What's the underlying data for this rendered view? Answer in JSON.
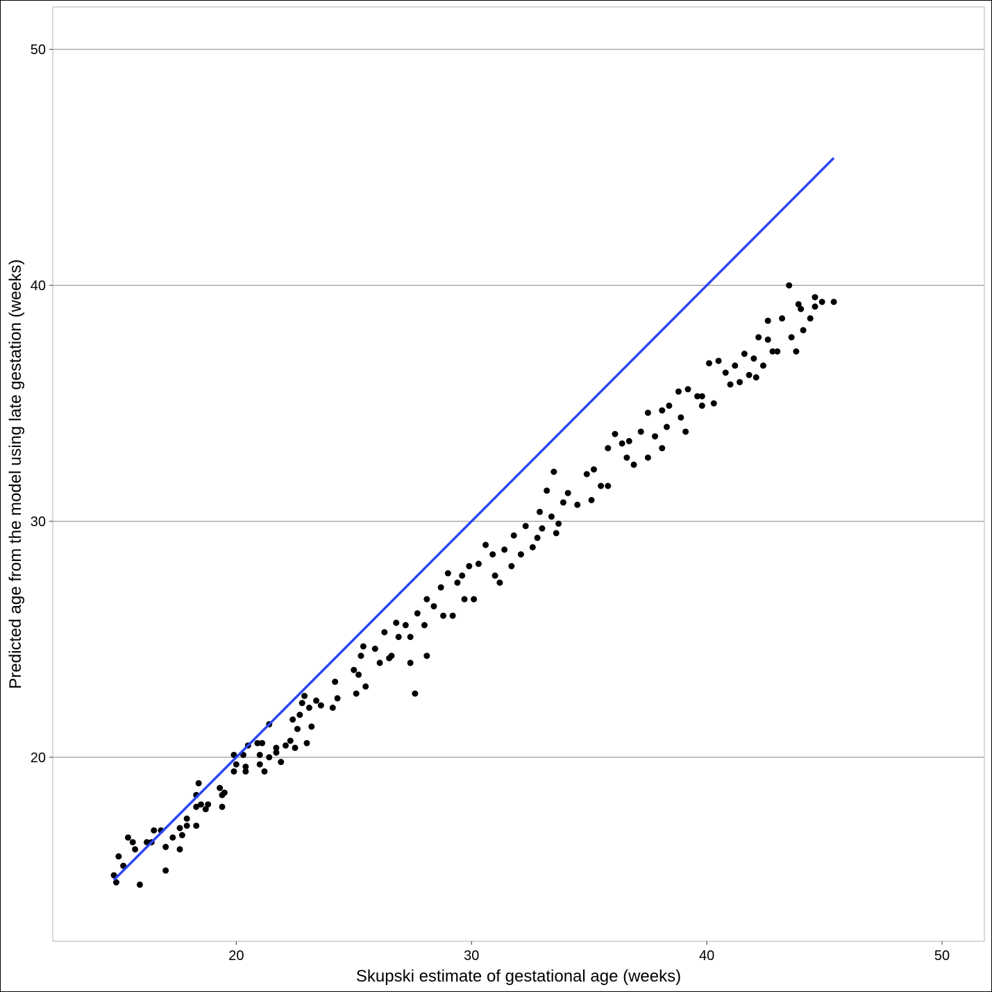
{
  "chart_data": {
    "type": "scatter",
    "x_label": "Skupski estimate of gestational age (weeks)",
    "y_label": "Predicted age from the model using late gestation (weeks)",
    "xlim": [
      12.2,
      51.8
    ],
    "ylim": [
      12.2,
      51.8
    ],
    "xticks": [
      20,
      30,
      40,
      50
    ],
    "yticks": [
      20,
      30,
      40,
      50
    ],
    "grid": "y",
    "points": {
      "color": "#000000",
      "x": [
        14.8,
        14.9,
        15.0,
        15.2,
        15.4,
        15.6,
        15.7,
        15.9,
        16.2,
        16.5,
        16.4,
        16.8,
        17.0,
        17.0,
        17.3,
        17.6,
        17.6,
        17.7,
        17.9,
        17.9,
        18.3,
        18.3,
        18.3,
        18.4,
        18.5,
        18.7,
        18.8,
        19.3,
        19.4,
        19.4,
        19.5,
        19.9,
        19.9,
        20.0,
        20.3,
        20.4,
        20.4,
        20.5,
        21.0,
        20.9,
        21.1,
        21.0,
        21.2,
        21.4,
        21.4,
        21.7,
        21.7,
        21.9,
        22.1,
        22.3,
        22.4,
        22.5,
        22.6,
        22.7,
        22.8,
        22.9,
        23.0,
        23.1,
        23.2,
        23.4,
        23.6,
        24.1,
        24.2,
        24.3,
        25.0,
        25.1,
        25.3,
        25.4,
        25.2,
        25.5,
        25.9,
        26.1,
        26.3,
        26.5,
        26.6,
        26.8,
        26.9,
        27.2,
        27.4,
        27.4,
        27.6,
        27.7,
        28.0,
        28.1,
        28.1,
        28.4,
        28.7,
        28.8,
        29.0,
        29.2,
        29.4,
        29.6,
        29.7,
        29.9,
        30.1,
        30.3,
        30.6,
        30.9,
        31.0,
        31.2,
        31.4,
        31.7,
        31.8,
        32.1,
        32.3,
        32.6,
        32.8,
        33.0,
        32.9,
        33.2,
        33.4,
        33.5,
        33.6,
        33.7,
        33.9,
        34.1,
        34.5,
        34.9,
        35.1,
        35.2,
        35.5,
        35.8,
        35.8,
        36.1,
        36.4,
        36.6,
        36.7,
        36.9,
        37.2,
        37.5,
        37.5,
        37.8,
        38.1,
        38.1,
        38.3,
        38.4,
        38.8,
        38.9,
        39.1,
        39.2,
        39.6,
        39.8,
        39.8,
        40.1,
        40.3,
        40.5,
        40.8,
        41.0,
        41.2,
        41.4,
        41.6,
        41.8,
        42.0,
        42.1,
        42.2,
        42.4,
        42.6,
        42.6,
        42.8,
        43.0,
        43.2,
        43.5,
        43.6,
        43.8,
        43.9,
        44.0,
        44.1,
        44.4,
        44.6,
        44.6,
        44.9,
        45.4
      ],
      "y": [
        15.0,
        14.7,
        15.8,
        15.4,
        16.6,
        16.4,
        16.1,
        14.6,
        16.4,
        16.9,
        16.4,
        16.9,
        15.2,
        16.2,
        16.6,
        17.0,
        16.1,
        16.7,
        17.1,
        17.4,
        17.1,
        18.4,
        17.9,
        18.9,
        18.0,
        17.8,
        18.0,
        18.7,
        18.4,
        17.9,
        18.5,
        20.1,
        19.4,
        19.7,
        20.1,
        19.6,
        19.4,
        20.5,
        20.1,
        20.6,
        20.6,
        19.7,
        19.4,
        20.0,
        21.4,
        20.4,
        20.2,
        19.8,
        20.5,
        20.7,
        21.6,
        20.4,
        21.2,
        21.8,
        22.3,
        22.6,
        20.6,
        22.1,
        21.3,
        22.4,
        22.2,
        22.1,
        23.2,
        22.5,
        23.7,
        22.7,
        24.3,
        24.7,
        23.5,
        23.0,
        24.6,
        24.0,
        25.3,
        24.2,
        24.3,
        25.7,
        25.1,
        25.6,
        24.0,
        25.1,
        22.7,
        26.1,
        25.6,
        24.3,
        26.7,
        26.4,
        27.2,
        26.0,
        27.8,
        26.0,
        27.4,
        27.7,
        26.7,
        28.1,
        26.7,
        28.2,
        29.0,
        28.6,
        27.7,
        27.4,
        28.8,
        28.1,
        29.4,
        28.6,
        29.8,
        28.9,
        29.3,
        29.7,
        30.4,
        31.3,
        30.2,
        32.1,
        29.5,
        29.9,
        30.8,
        31.2,
        30.7,
        32.0,
        30.9,
        32.2,
        31.5,
        33.1,
        31.5,
        33.7,
        33.3,
        32.7,
        33.4,
        32.4,
        33.8,
        34.6,
        32.7,
        33.6,
        34.7,
        33.1,
        34.0,
        34.9,
        35.5,
        34.4,
        33.8,
        35.6,
        35.3,
        35.3,
        34.9,
        36.7,
        35.0,
        36.8,
        36.3,
        35.8,
        36.6,
        35.9,
        37.1,
        36.2,
        36.9,
        36.1,
        37.8,
        36.6,
        37.7,
        38.5,
        37.2,
        37.2,
        38.6,
        40.0,
        37.8,
        37.2,
        39.2,
        39.0,
        38.1,
        38.6,
        39.5,
        39.1,
        39.3,
        39.3
      ]
    },
    "line": {
      "color": "#2a46f2",
      "x": [
        14.8,
        45.4
      ],
      "y": [
        14.8,
        45.4
      ]
    }
  }
}
